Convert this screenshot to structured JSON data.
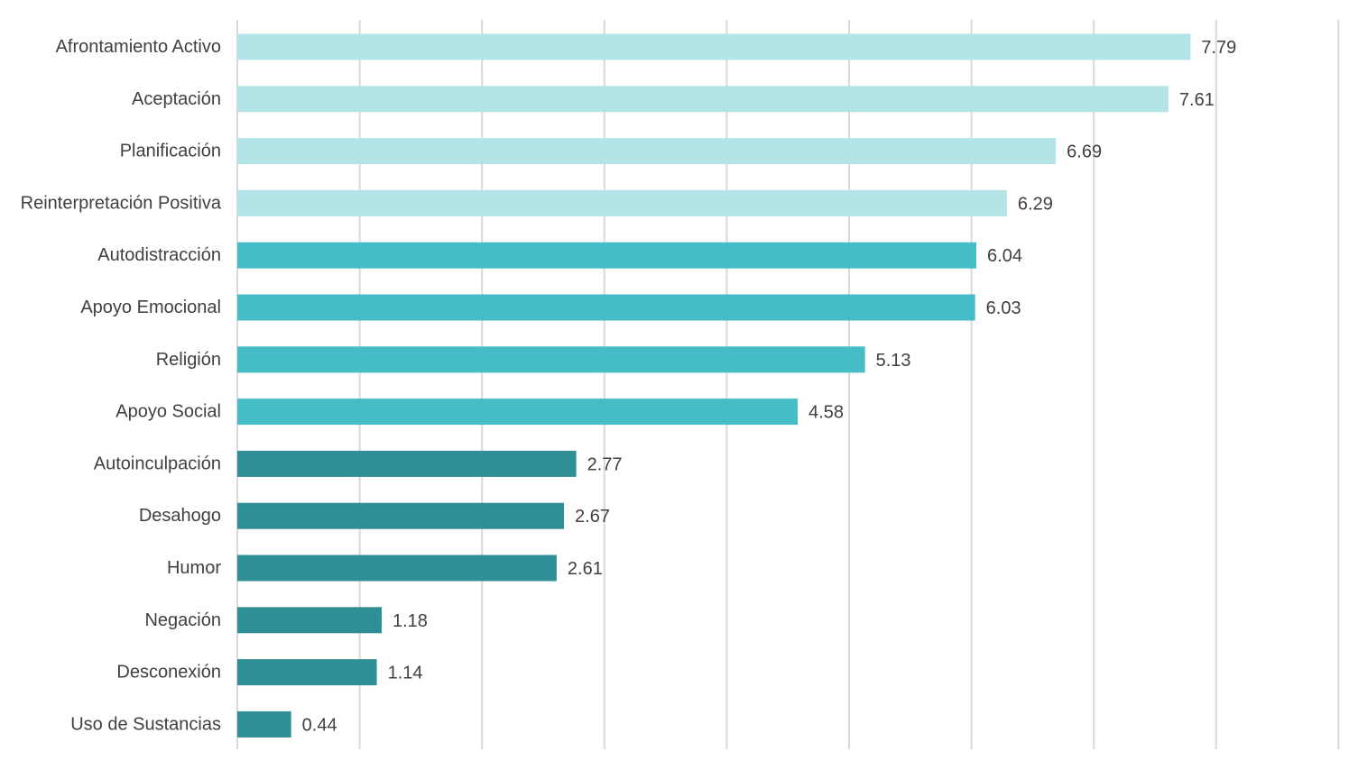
{
  "chart_data": {
    "type": "bar",
    "orientation": "horizontal",
    "title": "",
    "xlabel": "",
    "ylabel": "",
    "xlim": [
      0,
      9
    ],
    "grid": true,
    "legend": "none",
    "categories": [
      "Afrontamiento Activo",
      "Aceptación",
      "Planificación",
      "Reinterpretación Positiva",
      "Autodistracción",
      "Apoyo Emocional",
      "Religión",
      "Apoyo Social",
      "Autoinculpación",
      "Desahogo",
      "Humor",
      "Negación",
      "Desconexión",
      "Uso de Sustancias"
    ],
    "values": [
      7.79,
      7.61,
      6.69,
      6.29,
      6.04,
      6.03,
      5.13,
      4.58,
      2.77,
      2.67,
      2.61,
      1.18,
      1.14,
      0.44
    ],
    "value_labels": [
      "7.79",
      "7.61",
      "6.69",
      "6.29",
      "6.04",
      "6.03",
      "5.13",
      "4.58",
      "2.77",
      "2.67",
      "2.61",
      "1.18",
      "1.14",
      "0.44"
    ],
    "bar_colors": [
      "#b3e5e8",
      "#b3e5e8",
      "#b3e5e8",
      "#b3e5e8",
      "#45bcc6",
      "#45bcc6",
      "#45bcc6",
      "#45bcc6",
      "#2e8f97",
      "#2e8f97",
      "#2e8f97",
      "#2e8f97",
      "#2e8f97",
      "#2e8f97"
    ],
    "grid_color": "#d9d9d9",
    "label_color": "#404040"
  }
}
